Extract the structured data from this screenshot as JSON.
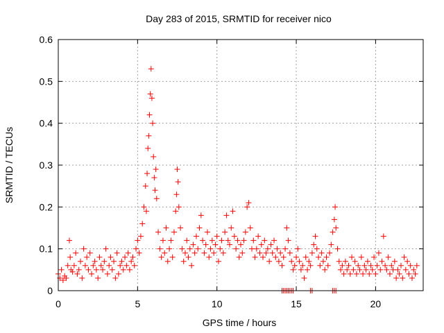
{
  "chart_data": {
    "type": "scatter",
    "title": "Day 283 of 2015, SRMTID for receiver nico",
    "xlabel": "GPS time / hours",
    "ylabel": "SRMTID / TECUs",
    "xlim": [
      0,
      23
    ],
    "ylim": [
      0,
      0.6
    ],
    "x_ticks": [
      "0",
      "5",
      "10",
      "15",
      "20"
    ],
    "x_tick_values": [
      0,
      5,
      10,
      15,
      20
    ],
    "y_ticks": [
      "0",
      "0.1",
      "0.2",
      "0.3",
      "0.4",
      "0.5",
      "0.6"
    ],
    "y_tick_values": [
      0,
      0.1,
      0.2,
      0.3,
      0.4,
      0.5,
      0.6
    ],
    "grid": true,
    "marker": "+",
    "series": [
      {
        "name": "SRMTID",
        "color": "#ff0000",
        "points": [
          [
            0.0,
            0.04
          ],
          [
            0.1,
            0.03
          ],
          [
            0.2,
            0.05
          ],
          [
            0.3,
            0.025
          ],
          [
            0.4,
            0.035
          ],
          [
            0.5,
            0.03
          ],
          [
            0.6,
            0.06
          ],
          [
            0.7,
            0.12
          ],
          [
            0.75,
            0.08
          ],
          [
            0.8,
            0.05
          ],
          [
            0.9,
            0.045
          ],
          [
            1.0,
            0.06
          ],
          [
            1.1,
            0.09
          ],
          [
            1.2,
            0.04
          ],
          [
            1.3,
            0.05
          ],
          [
            1.4,
            0.07
          ],
          [
            1.5,
            0.03
          ],
          [
            1.6,
            0.1
          ],
          [
            1.7,
            0.06
          ],
          [
            1.8,
            0.08
          ],
          [
            1.9,
            0.05
          ],
          [
            2.0,
            0.09
          ],
          [
            2.1,
            0.04
          ],
          [
            2.2,
            0.06
          ],
          [
            2.3,
            0.07
          ],
          [
            2.4,
            0.05
          ],
          [
            2.5,
            0.03
          ],
          [
            2.6,
            0.08
          ],
          [
            2.7,
            0.06
          ],
          [
            2.8,
            0.05
          ],
          [
            2.9,
            0.07
          ],
          [
            3.0,
            0.1
          ],
          [
            3.1,
            0.04
          ],
          [
            3.2,
            0.06
          ],
          [
            3.3,
            0.08
          ],
          [
            3.4,
            0.05
          ],
          [
            3.5,
            0.07
          ],
          [
            3.6,
            0.03
          ],
          [
            3.7,
            0.09
          ],
          [
            3.8,
            0.04
          ],
          [
            3.9,
            0.06
          ],
          [
            4.0,
            0.07
          ],
          [
            4.1,
            0.05
          ],
          [
            4.2,
            0.08
          ],
          [
            4.3,
            0.06
          ],
          [
            4.4,
            0.09
          ],
          [
            4.5,
            0.05
          ],
          [
            4.6,
            0.07
          ],
          [
            4.7,
            0.08
          ],
          [
            4.8,
            0.06
          ],
          [
            4.9,
            0.1
          ],
          [
            5.0,
            0.12
          ],
          [
            5.1,
            0.09
          ],
          [
            5.2,
            0.13
          ],
          [
            5.3,
            0.16
          ],
          [
            5.4,
            0.2
          ],
          [
            5.5,
            0.25
          ],
          [
            5.55,
            0.19
          ],
          [
            5.6,
            0.28
          ],
          [
            5.65,
            0.34
          ],
          [
            5.7,
            0.37
          ],
          [
            5.75,
            0.42
          ],
          [
            5.8,
            0.47
          ],
          [
            5.85,
            0.53
          ],
          [
            5.9,
            0.46
          ],
          [
            5.95,
            0.4
          ],
          [
            6.0,
            0.32
          ],
          [
            6.05,
            0.27
          ],
          [
            6.1,
            0.24
          ],
          [
            6.15,
            0.29
          ],
          [
            6.2,
            0.22
          ],
          [
            6.3,
            0.14
          ],
          [
            6.4,
            0.1
          ],
          [
            6.5,
            0.08
          ],
          [
            6.6,
            0.12
          ],
          [
            6.7,
            0.09
          ],
          [
            6.8,
            0.15
          ],
          [
            6.9,
            0.07
          ],
          [
            7.0,
            0.1
          ],
          [
            7.1,
            0.12
          ],
          [
            7.2,
            0.08
          ],
          [
            7.3,
            0.14
          ],
          [
            7.4,
            0.19
          ],
          [
            7.45,
            0.23
          ],
          [
            7.5,
            0.29
          ],
          [
            7.55,
            0.26
          ],
          [
            7.6,
            0.2
          ],
          [
            7.7,
            0.15
          ],
          [
            7.8,
            0.1
          ],
          [
            7.9,
            0.07
          ],
          [
            8.0,
            0.09
          ],
          [
            8.1,
            0.12
          ],
          [
            8.2,
            0.08
          ],
          [
            8.3,
            0.1
          ],
          [
            8.4,
            0.06
          ],
          [
            8.5,
            0.11
          ],
          [
            8.6,
            0.09
          ],
          [
            8.7,
            0.13
          ],
          [
            8.8,
            0.1
          ],
          [
            8.9,
            0.15
          ],
          [
            9.0,
            0.18
          ],
          [
            9.1,
            0.12
          ],
          [
            9.2,
            0.09
          ],
          [
            9.3,
            0.11
          ],
          [
            9.4,
            0.14
          ],
          [
            9.5,
            0.08
          ],
          [
            9.6,
            0.1
          ],
          [
            9.7,
            0.12
          ],
          [
            9.8,
            0.09
          ],
          [
            9.9,
            0.11
          ],
          [
            10.0,
            0.13
          ],
          [
            10.1,
            0.07
          ],
          [
            10.2,
            0.1
          ],
          [
            10.3,
            0.12
          ],
          [
            10.4,
            0.09
          ],
          [
            10.5,
            0.14
          ],
          [
            10.6,
            0.18
          ],
          [
            10.7,
            0.12
          ],
          [
            10.8,
            0.11
          ],
          [
            10.9,
            0.15
          ],
          [
            11.0,
            0.19
          ],
          [
            11.1,
            0.13
          ],
          [
            11.2,
            0.1
          ],
          [
            11.3,
            0.12
          ],
          [
            11.4,
            0.08
          ],
          [
            11.5,
            0.11
          ],
          [
            11.6,
            0.09
          ],
          [
            11.7,
            0.12
          ],
          [
            11.8,
            0.14
          ],
          [
            11.9,
            0.2
          ],
          [
            12.0,
            0.21
          ],
          [
            12.1,
            0.15
          ],
          [
            12.2,
            0.1
          ],
          [
            12.3,
            0.12
          ],
          [
            12.4,
            0.08
          ],
          [
            12.5,
            0.1
          ],
          [
            12.6,
            0.13
          ],
          [
            12.7,
            0.09
          ],
          [
            12.8,
            0.11
          ],
          [
            12.9,
            0.08
          ],
          [
            13.0,
            0.12
          ],
          [
            13.1,
            0.09
          ],
          [
            13.2,
            0.1
          ],
          [
            13.3,
            0.07
          ],
          [
            13.4,
            0.11
          ],
          [
            13.5,
            0.09
          ],
          [
            13.6,
            0.12
          ],
          [
            13.7,
            0.08
          ],
          [
            13.8,
            0.1
          ],
          [
            13.9,
            0.07
          ],
          [
            14.0,
            0.09
          ],
          [
            14.1,
            0.06
          ],
          [
            14.2,
            0.08
          ],
          [
            14.3,
            0.1
          ],
          [
            14.4,
            0.15
          ],
          [
            14.5,
            0.12
          ],
          [
            14.6,
            0.09
          ],
          [
            14.7,
            0.07
          ],
          [
            14.8,
            0.05
          ],
          [
            14.9,
            0.06
          ],
          [
            15.0,
            0.08
          ],
          [
            15.1,
            0.1
          ],
          [
            15.2,
            0.07
          ],
          [
            15.3,
            0.05
          ],
          [
            15.4,
            0.06
          ],
          [
            15.5,
            0.03
          ],
          [
            15.6,
            0.08
          ],
          [
            15.7,
            0.05
          ],
          [
            15.8,
            0.07
          ],
          [
            15.9,
            0.06
          ],
          [
            16.0,
            0.09
          ],
          [
            16.1,
            0.11
          ],
          [
            16.2,
            0.13
          ],
          [
            16.3,
            0.1
          ],
          [
            16.4,
            0.08
          ],
          [
            16.5,
            0.06
          ],
          [
            16.6,
            0.09
          ],
          [
            16.7,
            0.07
          ],
          [
            16.8,
            0.05
          ],
          [
            16.9,
            0.08
          ],
          [
            17.0,
            0.06
          ],
          [
            17.1,
            0.09
          ],
          [
            17.2,
            0.11
          ],
          [
            17.3,
            0.14
          ],
          [
            17.4,
            0.17
          ],
          [
            17.45,
            0.2
          ],
          [
            17.5,
            0.15
          ],
          [
            17.6,
            0.1
          ],
          [
            17.7,
            0.07
          ],
          [
            17.8,
            0.05
          ],
          [
            17.9,
            0.06
          ],
          [
            18.0,
            0.04
          ],
          [
            18.1,
            0.07
          ],
          [
            18.2,
            0.05
          ],
          [
            18.3,
            0.06
          ],
          [
            18.4,
            0.04
          ],
          [
            18.5,
            0.08
          ],
          [
            18.6,
            0.05
          ],
          [
            18.7,
            0.07
          ],
          [
            18.8,
            0.04
          ],
          [
            18.9,
            0.06
          ],
          [
            19.0,
            0.05
          ],
          [
            19.1,
            0.08
          ],
          [
            19.2,
            0.04
          ],
          [
            19.3,
            0.06
          ],
          [
            19.4,
            0.05
          ],
          [
            19.5,
            0.07
          ],
          [
            19.6,
            0.04
          ],
          [
            19.7,
            0.06
          ],
          [
            19.8,
            0.05
          ],
          [
            19.9,
            0.08
          ],
          [
            20.0,
            0.04
          ],
          [
            20.1,
            0.06
          ],
          [
            20.2,
            0.09
          ],
          [
            20.3,
            0.05
          ],
          [
            20.4,
            0.07
          ],
          [
            20.5,
            0.13
          ],
          [
            20.6,
            0.06
          ],
          [
            20.7,
            0.05
          ],
          [
            20.8,
            0.08
          ],
          [
            20.9,
            0.04
          ],
          [
            21.0,
            0.06
          ],
          [
            21.1,
            0.05
          ],
          [
            21.2,
            0.07
          ],
          [
            21.3,
            0.03
          ],
          [
            21.4,
            0.05
          ],
          [
            21.5,
            0.04
          ],
          [
            21.6,
            0.06
          ],
          [
            21.7,
            0.03
          ],
          [
            21.8,
            0.08
          ],
          [
            21.9,
            0.05
          ],
          [
            22.0,
            0.07
          ],
          [
            22.1,
            0.04
          ],
          [
            22.2,
            0.06
          ],
          [
            22.3,
            0.03
          ],
          [
            22.4,
            0.05
          ],
          [
            22.5,
            0.04
          ],
          [
            22.6,
            0.06
          ]
        ],
        "zero_points": [
          14.1,
          14.2,
          14.3,
          14.4,
          14.5,
          14.6,
          14.7,
          14.8,
          15.9,
          16.0,
          17.3,
          17.4,
          17.5
        ]
      }
    ]
  }
}
